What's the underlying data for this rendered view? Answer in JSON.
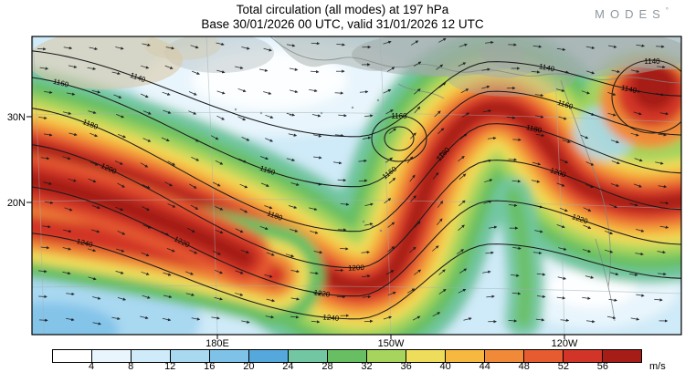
{
  "header": {
    "title": "Total circulation (all modes) at 197 hPa",
    "subtitle": "Base 30/01/2026 00 UTC, valid 31/01/2026 12 UTC",
    "logo": "MODES",
    "logo_degree": "°"
  },
  "map": {
    "lat_labels": [
      "30N",
      "20N"
    ],
    "lon_labels": [
      "180E",
      "150W",
      "120W"
    ],
    "contour_levels": [
      "1140",
      "1160",
      "1180",
      "1200",
      "1220",
      "1240"
    ]
  },
  "colorbar": {
    "values": [
      4,
      8,
      12,
      16,
      20,
      24,
      28,
      32,
      36,
      40,
      44,
      48,
      52,
      56
    ],
    "unit": "m/s",
    "colors": [
      "#ffffff",
      "#e8f5fc",
      "#cfeaf8",
      "#a9d8f1",
      "#7fc2e8",
      "#54a8db",
      "#72c6a2",
      "#68bf63",
      "#a6d45c",
      "#eedd5a",
      "#f6b83f",
      "#f08a38",
      "#e65b30",
      "#d23527",
      "#a61d17"
    ]
  },
  "chart_data": {
    "type": "heatmap",
    "title": "Total circulation (all modes) at 197 hPa",
    "subtitle": "Base 30/01/2026 00 UTC, valid 31/01/2026 12 UTC",
    "variable": "total circulation wind speed (all modes)",
    "pressure_level": "197 hPa",
    "base_time": "30/01/2026 00 UTC",
    "valid_time": "31/01/2026 12 UTC",
    "x_axis": {
      "label": "longitude",
      "tick_labels": [
        "180E",
        "150W",
        "120W"
      ]
    },
    "y_axis": {
      "label": "latitude",
      "tick_labels": [
        "30N",
        "20N"
      ]
    },
    "colorbar": {
      "unit": "m/s",
      "boundaries": [
        4,
        8,
        12,
        16,
        20,
        24,
        28,
        32,
        36,
        40,
        44,
        48,
        52,
        56
      ],
      "colors": [
        "#ffffff",
        "#e8f5fc",
        "#cfeaf8",
        "#a9d8f1",
        "#7fc2e8",
        "#54a8db",
        "#72c6a2",
        "#68bf63",
        "#a6d45c",
        "#eedd5a",
        "#f6b83f",
        "#f08a38",
        "#e65b30",
        "#d23527",
        "#a61d17"
      ]
    },
    "contour_line_labels": [
      1140,
      1160,
      1180,
      1200,
      1220,
      1240
    ],
    "overlays": [
      "contour lines",
      "wind direction arrows",
      "coastlines",
      "lat-lon graticule"
    ],
    "legend_position": "bottom"
  }
}
